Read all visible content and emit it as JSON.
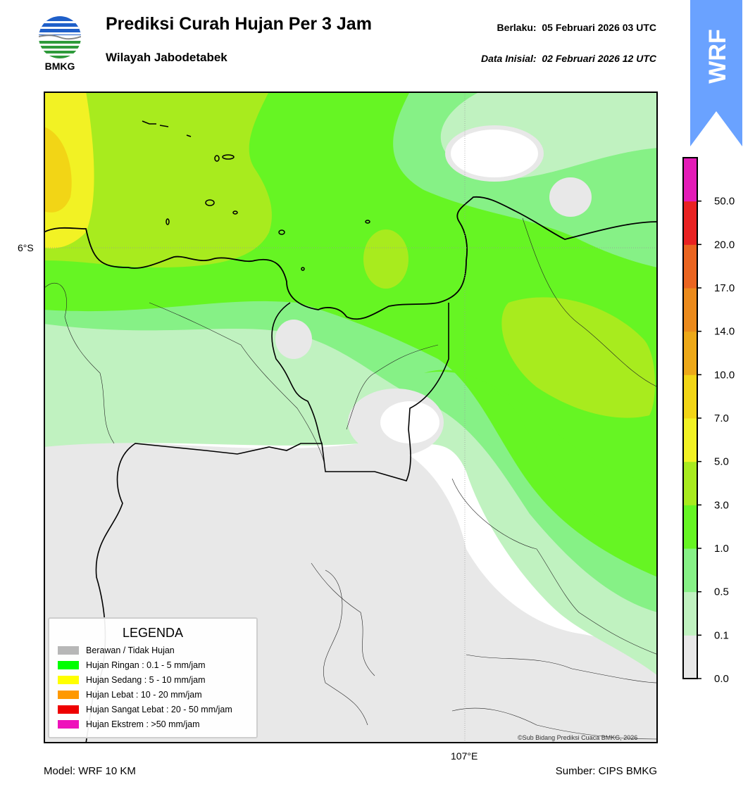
{
  "header": {
    "logo_text": "BMKG",
    "title": "Prediksi Curah Hujan Per 3 Jam",
    "subtitle": "Wilayah Jabodetabek",
    "valid_label": "Berlaku:",
    "valid_value": "05 Februari 2026 03 UTC",
    "init_label": "Data Inisial:",
    "init_value": "02 Februari 2026 12 UTC"
  },
  "badge": {
    "text": "WRF",
    "color": "#6aa2ff"
  },
  "map": {
    "lat_label": "6°S",
    "lon_label": "107°E",
    "credit": "©Sub Bidang Prediksi Cuaca BMKG, 2026"
  },
  "colorbar": {
    "ticks": [
      "0.0",
      "0.1",
      "0.5",
      "1.0",
      "3.0",
      "5.0",
      "7.0",
      "10.0",
      "14.0",
      "17.0",
      "20.0",
      "50.0"
    ],
    "colors": [
      "#e8e8e8",
      "#c0f2c0",
      "#86f186",
      "#66f523",
      "#a8eb1e",
      "#f2f224",
      "#f2d516",
      "#eda818",
      "#eb8a1c",
      "#ea6420",
      "#e92222",
      "#e41cb7"
    ]
  },
  "legend": {
    "title": "LEGENDA",
    "items": [
      {
        "label": "Berawan / Tidak Hujan",
        "color": "#b7b7b7"
      },
      {
        "label": "Hujan Ringan : 0.1 - 5 mm/jam",
        "color": "#00ff00"
      },
      {
        "label": "Hujan Sedang : 5 - 10 mm/jam",
        "color": "#ffff00"
      },
      {
        "label": "Hujan Lebat : 10 - 20 mm/jam",
        "color": "#ff9900"
      },
      {
        "label": "Hujan Sangat Lebat : 20 - 50 mm/jam",
        "color": "#ee0000"
      },
      {
        "label": "Hujan Ekstrem : >50 mm/jam",
        "color": "#ee11bb"
      }
    ]
  },
  "footer": {
    "model": "Model: WRF 10 KM",
    "source": "Sumber: CIPS BMKG"
  }
}
